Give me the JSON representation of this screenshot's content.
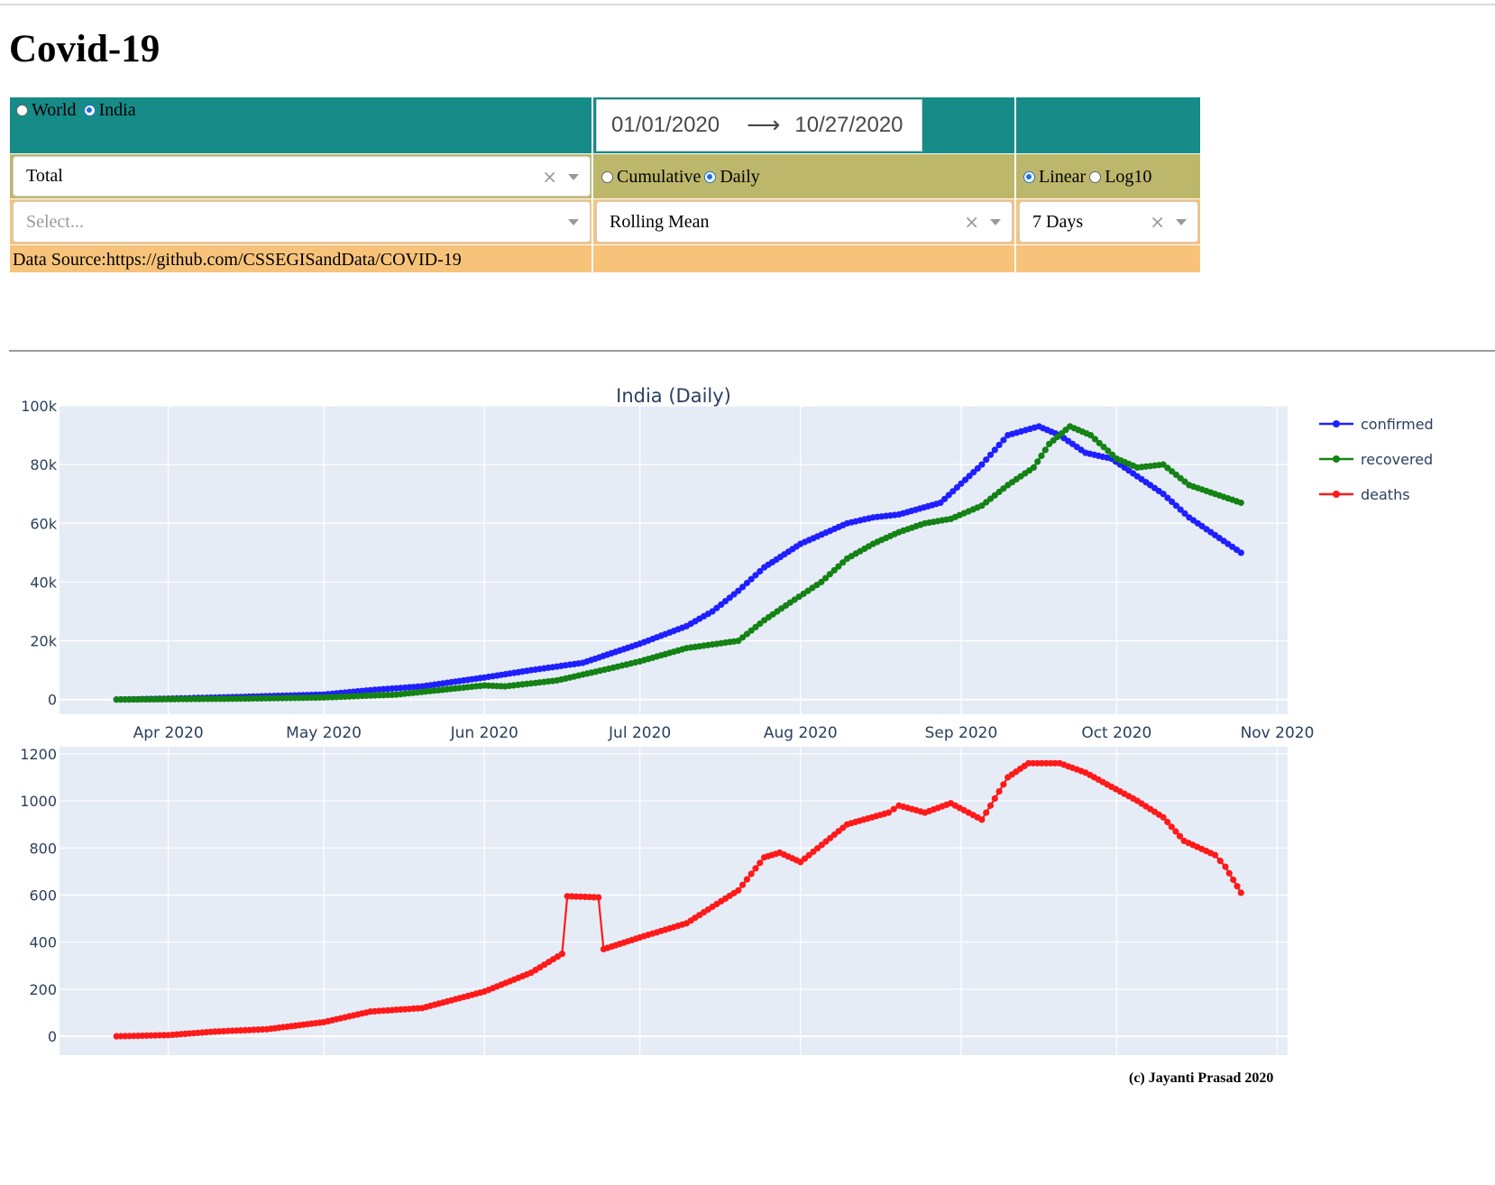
{
  "page_title": "Covid-19",
  "region": {
    "options": [
      "World",
      "India"
    ],
    "selected": "India"
  },
  "date_range": {
    "start": "01/01/2020",
    "end": "10/27/2020"
  },
  "metric_select": {
    "value": "Total"
  },
  "mode": {
    "options": [
      "Cumulative",
      "Daily"
    ],
    "selected": "Daily"
  },
  "scale": {
    "options": [
      "Linear",
      "Log10"
    ],
    "selected": "Linear"
  },
  "extra_select": {
    "placeholder": "Select..."
  },
  "smoothing_select": {
    "value": "Rolling Mean"
  },
  "window_select": {
    "value": "7 Days"
  },
  "data_source": "Data Source:https://github.com/CSSEGISandData/COVID-19",
  "footer": "(c) Jayanti Prasad 2020",
  "colors": {
    "teal": "#168b88",
    "olive": "#bdb76b",
    "orange": "#f7c37a",
    "confirmed": "#1f1fff",
    "recovered": "#148214",
    "deaths": "#ff1a1a",
    "plot_bg": "#e5ecf6"
  },
  "chart_data": [
    {
      "type": "line",
      "title": "India (Daily)",
      "x_ticks": [
        "Apr 2020",
        "May 2020",
        "Jun 2020",
        "Jul 2020",
        "Aug 2020",
        "Sep 2020",
        "Oct 2020",
        "Nov 2020"
      ],
      "ylim": [
        -5000,
        100000
      ],
      "y_ticks": [
        0,
        20000,
        40000,
        60000,
        80000,
        100000
      ],
      "y_tick_labels": [
        "0",
        "20k",
        "40k",
        "60k",
        "80k",
        "100k"
      ],
      "legend_position": "right",
      "series": [
        {
          "name": "confirmed",
          "color": "#1f1fff",
          "points": [
            [
              "2020-03-22",
              0
            ],
            [
              "2020-04-01",
              300
            ],
            [
              "2020-04-15",
              900
            ],
            [
              "2020-05-01",
              1700
            ],
            [
              "2020-05-10",
              3200
            ],
            [
              "2020-05-20",
              4500
            ],
            [
              "2020-06-01",
              7500
            ],
            [
              "2020-06-10",
              10000
            ],
            [
              "2020-06-20",
              12500
            ],
            [
              "2020-07-01",
              19000
            ],
            [
              "2020-07-10",
              25000
            ],
            [
              "2020-07-15",
              30000
            ],
            [
              "2020-07-20",
              37000
            ],
            [
              "2020-07-25",
              45000
            ],
            [
              "2020-08-01",
              53000
            ],
            [
              "2020-08-10",
              60000
            ],
            [
              "2020-08-15",
              62000
            ],
            [
              "2020-08-20",
              63000
            ],
            [
              "2020-08-28",
              67000
            ],
            [
              "2020-09-05",
              80000
            ],
            [
              "2020-09-10",
              90000
            ],
            [
              "2020-09-16",
              93000
            ],
            [
              "2020-09-20",
              90000
            ],
            [
              "2020-09-25",
              84000
            ],
            [
              "2020-09-30",
              82000
            ],
            [
              "2020-10-05",
              76000
            ],
            [
              "2020-10-10",
              70000
            ],
            [
              "2020-10-15",
              62000
            ],
            [
              "2020-10-20",
              56000
            ],
            [
              "2020-10-25",
              50000
            ]
          ]
        },
        {
          "name": "recovered",
          "color": "#148214",
          "points": [
            [
              "2020-03-22",
              0
            ],
            [
              "2020-04-15",
              300
            ],
            [
              "2020-05-01",
              700
            ],
            [
              "2020-05-15",
              1700
            ],
            [
              "2020-06-01",
              4800
            ],
            [
              "2020-06-05",
              4500
            ],
            [
              "2020-06-15",
              6500
            ],
            [
              "2020-06-25",
              10500
            ],
            [
              "2020-07-01",
              13000
            ],
            [
              "2020-07-10",
              17500
            ],
            [
              "2020-07-20",
              20000
            ],
            [
              "2020-07-25",
              27000
            ],
            [
              "2020-07-30",
              33000
            ],
            [
              "2020-08-05",
              40000
            ],
            [
              "2020-08-10",
              48000
            ],
            [
              "2020-08-15",
              53000
            ],
            [
              "2020-08-20",
              57000
            ],
            [
              "2020-08-25",
              60000
            ],
            [
              "2020-08-30",
              61500
            ],
            [
              "2020-09-05",
              66000
            ],
            [
              "2020-09-10",
              73000
            ],
            [
              "2020-09-15",
              79000
            ],
            [
              "2020-09-18",
              87000
            ],
            [
              "2020-09-22",
              93000
            ],
            [
              "2020-09-26",
              90000
            ],
            [
              "2020-10-01",
              82000
            ],
            [
              "2020-10-05",
              79000
            ],
            [
              "2020-10-10",
              80000
            ],
            [
              "2020-10-15",
              73000
            ],
            [
              "2020-10-20",
              70000
            ],
            [
              "2020-10-25",
              67000
            ]
          ]
        }
      ]
    },
    {
      "type": "line",
      "x_ticks": [
        "Apr 2020",
        "May 2020",
        "Jun 2020",
        "Jul 2020",
        "Aug 2020",
        "Sep 2020",
        "Oct 2020",
        "Nov 2020"
      ],
      "ylim": [
        -80,
        1230
      ],
      "y_ticks": [
        0,
        200,
        400,
        600,
        800,
        1000,
        1200
      ],
      "series": [
        {
          "name": "deaths",
          "color": "#ff1a1a",
          "points": [
            [
              "2020-03-22",
              0
            ],
            [
              "2020-04-01",
              5
            ],
            [
              "2020-04-10",
              20
            ],
            [
              "2020-04-20",
              30
            ],
            [
              "2020-05-01",
              60
            ],
            [
              "2020-05-10",
              105
            ],
            [
              "2020-05-20",
              120
            ],
            [
              "2020-06-01",
              190
            ],
            [
              "2020-06-10",
              270
            ],
            [
              "2020-06-16",
              350
            ],
            [
              "2020-06-17",
              595
            ],
            [
              "2020-06-23",
              590
            ],
            [
              "2020-06-24",
              370
            ],
            [
              "2020-07-01",
              420
            ],
            [
              "2020-07-10",
              480
            ],
            [
              "2020-07-20",
              620
            ],
            [
              "2020-07-25",
              760
            ],
            [
              "2020-07-28",
              780
            ],
            [
              "2020-08-01",
              740
            ],
            [
              "2020-08-10",
              900
            ],
            [
              "2020-08-18",
              950
            ],
            [
              "2020-08-20",
              980
            ],
            [
              "2020-08-25",
              950
            ],
            [
              "2020-08-30",
              990
            ],
            [
              "2020-09-05",
              920
            ],
            [
              "2020-09-10",
              1100
            ],
            [
              "2020-09-14",
              1160
            ],
            [
              "2020-09-20",
              1160
            ],
            [
              "2020-09-25",
              1120
            ],
            [
              "2020-09-30",
              1060
            ],
            [
              "2020-10-05",
              1000
            ],
            [
              "2020-10-10",
              930
            ],
            [
              "2020-10-14",
              830
            ],
            [
              "2020-10-20",
              770
            ],
            [
              "2020-10-22",
              720
            ],
            [
              "2020-10-25",
              610
            ]
          ]
        }
      ]
    }
  ]
}
